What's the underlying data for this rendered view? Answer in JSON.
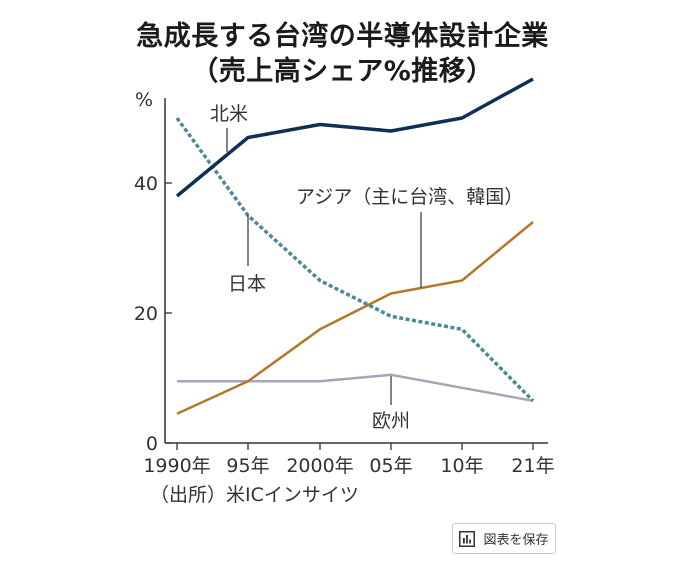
{
  "title_line1": "急成長する台湾の半導体設計企業",
  "title_line2": "（売上高シェア%推移）",
  "source": "（出所）米ICインサイツ",
  "save_button": {
    "label": "図表を保存",
    "icon": "bar-chart-icon"
  },
  "chart_data": {
    "type": "line",
    "unit_label": "%",
    "x": [
      "1990年",
      "95年",
      "2000年",
      "05年",
      "10年",
      "21年"
    ],
    "ylim": [
      0,
      55
    ],
    "yticks": [
      0,
      20,
      40
    ],
    "grid": false,
    "legend": "inline labels",
    "series": [
      {
        "name": "北米",
        "values": [
          38,
          47,
          49,
          48,
          50,
          56
        ],
        "color": "#0f2f57",
        "style": "solid"
      },
      {
        "name": "日本",
        "values": [
          50,
          35,
          25,
          19.5,
          17.5,
          6.5
        ],
        "color": "#4d8a96",
        "style": "dotted"
      },
      {
        "name": "アジア（主に台湾、韓国）",
        "values": [
          4.5,
          9.5,
          17.5,
          23,
          25,
          34
        ],
        "color": "#b3782a",
        "style": "solid"
      },
      {
        "name": "欧州",
        "values": [
          9.5,
          9.5,
          9.5,
          10.5,
          8.5,
          6.5
        ],
        "color": "#a9a3b6",
        "style": "solid"
      }
    ]
  }
}
